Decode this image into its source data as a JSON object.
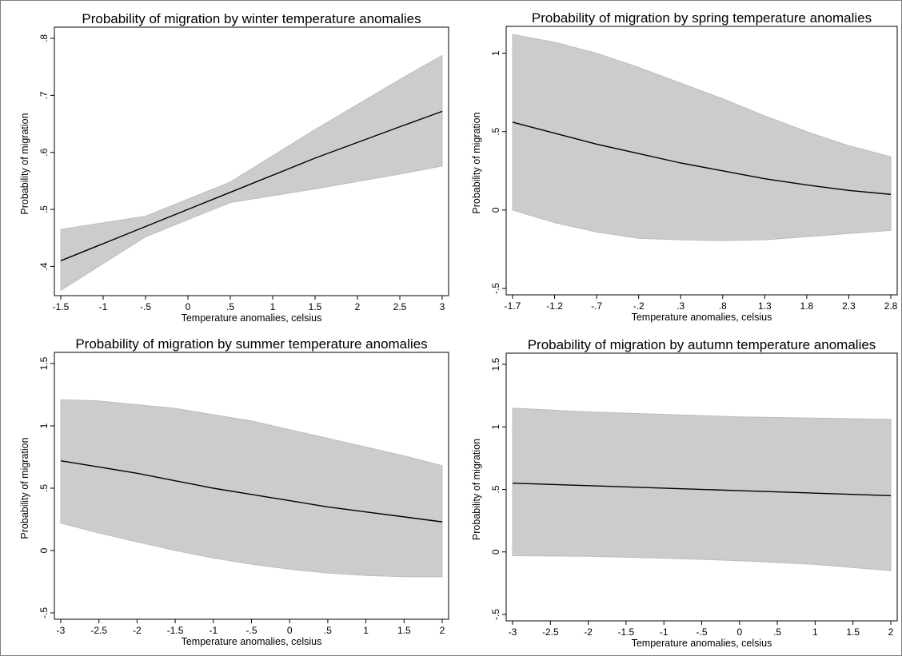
{
  "chart_data": [
    {
      "type": "line",
      "title": "Probability of migration by winter temperature anomalies",
      "xlabel": "Temperature anomalies, celsius",
      "ylabel": "Probability of migration",
      "xlim": [
        -1.5,
        3
      ],
      "ylim": [
        0.36,
        0.8
      ],
      "x_ticks": [
        -1.5,
        -1,
        -0.5,
        0,
        0.5,
        1,
        1.5,
        2,
        2.5,
        3
      ],
      "x_tick_labels": [
        "-1.5",
        "-1",
        "-.5",
        "0",
        ".5",
        "1",
        "1.5",
        "2",
        "2.5",
        "3"
      ],
      "y_ticks": [
        0.4,
        0.5,
        0.6,
        0.7,
        0.8
      ],
      "y_tick_labels": [
        ".4",
        ".5",
        ".6",
        ".7",
        ".8"
      ],
      "grid": false,
      "colors": {
        "band": "#cccccc",
        "line": "#000000"
      },
      "series": [
        {
          "x": [
            -1.5,
            -0.5,
            0.5,
            1.5,
            2.5,
            3
          ],
          "values": [
            0.41,
            0.47,
            0.53,
            0.59,
            0.645,
            0.672
          ]
        },
        {
          "type": "band",
          "x": [
            -1.5,
            -0.5,
            0.5,
            1.5,
            2.5,
            3
          ],
          "lower": [
            0.358,
            0.452,
            0.512,
            0.536,
            0.562,
            0.576
          ],
          "upper": [
            0.465,
            0.488,
            0.548,
            0.64,
            0.728,
            0.77
          ]
        }
      ]
    },
    {
      "type": "line",
      "title": "Probability of migration by spring temperature anomalies",
      "xlabel": "Temperature anomalies, celsius",
      "ylabel": "Probability of migration",
      "xlim": [
        -1.7,
        2.8
      ],
      "ylim": [
        -0.5,
        1.1
      ],
      "x_ticks": [
        -1.7,
        -1.2,
        -0.7,
        -0.2,
        0.3,
        0.8,
        1.3,
        1.8,
        2.3,
        2.8
      ],
      "x_tick_labels": [
        "-1.7",
        "-1.2",
        "-.7",
        "-.2",
        ".3",
        ".8",
        "1.3",
        "1.8",
        "2.3",
        "2.8"
      ],
      "y_ticks": [
        -0.5,
        0,
        0.5,
        1
      ],
      "y_tick_labels": [
        "-.5",
        "0",
        ".5",
        "1"
      ],
      "grid": false,
      "colors": {
        "band": "#cccccc",
        "line": "#000000"
      },
      "series": [
        {
          "x": [
            -1.7,
            -1.2,
            -0.7,
            -0.2,
            0.3,
            0.8,
            1.3,
            1.8,
            2.3,
            2.8
          ],
          "values": [
            0.56,
            0.49,
            0.42,
            0.36,
            0.3,
            0.25,
            0.2,
            0.16,
            0.125,
            0.1
          ]
        },
        {
          "type": "band",
          "x": [
            -1.7,
            -1.2,
            -0.7,
            -0.2,
            0.3,
            0.8,
            1.3,
            1.8,
            2.3,
            2.8
          ],
          "lower": [
            0.0,
            -0.08,
            -0.14,
            -0.18,
            -0.19,
            -0.195,
            -0.19,
            -0.17,
            -0.15,
            -0.13
          ],
          "upper": [
            1.12,
            1.07,
            1.0,
            0.91,
            0.81,
            0.71,
            0.6,
            0.5,
            0.41,
            0.34
          ]
        }
      ]
    },
    {
      "type": "line",
      "title": "Probability of migration by summer temperature anomalies",
      "xlabel": "Temperature anomalies, celsius",
      "ylabel": "Probability of migration",
      "xlim": [
        -3,
        2
      ],
      "ylim": [
        -0.5,
        1.5
      ],
      "x_ticks": [
        -3,
        -2.5,
        -2,
        -1.5,
        -1,
        -0.5,
        0,
        0.5,
        1,
        1.5,
        2
      ],
      "x_tick_labels": [
        "-3",
        "-2.5",
        "-2",
        "-1.5",
        "-1",
        "-.5",
        "0",
        ".5",
        "1",
        "1.5",
        "2"
      ],
      "y_ticks": [
        -0.5,
        0,
        0.5,
        1,
        1.5
      ],
      "y_tick_labels": [
        "-.5",
        "0",
        ".5",
        "1",
        "1.5"
      ],
      "grid": false,
      "colors": {
        "band": "#cccccc",
        "line": "#000000"
      },
      "series": [
        {
          "x": [
            -3,
            -2.5,
            -2,
            -1.5,
            -1,
            -0.5,
            0,
            0.5,
            1,
            1.5,
            2
          ],
          "values": [
            0.72,
            0.67,
            0.62,
            0.56,
            0.5,
            0.45,
            0.4,
            0.35,
            0.31,
            0.27,
            0.23
          ]
        },
        {
          "type": "band",
          "x": [
            -3,
            -2.5,
            -2,
            -1.5,
            -1,
            -0.5,
            0,
            0.5,
            1,
            1.5,
            2
          ],
          "lower": [
            0.22,
            0.14,
            0.07,
            0.0,
            -0.06,
            -0.11,
            -0.15,
            -0.18,
            -0.2,
            -0.21,
            -0.21
          ],
          "upper": [
            1.21,
            1.2,
            1.17,
            1.14,
            1.09,
            1.04,
            0.97,
            0.9,
            0.83,
            0.76,
            0.68
          ]
        }
      ]
    },
    {
      "type": "line",
      "title": "Probability of migration by autumn temperature anomalies",
      "xlabel": "Temperature anomalies, celsius",
      "ylabel": "Probability of migration",
      "xlim": [
        -3,
        2
      ],
      "ylim": [
        -0.5,
        1.5
      ],
      "x_ticks": [
        -3,
        -2.5,
        -2,
        -1.5,
        -1,
        -0.5,
        0,
        0.5,
        1,
        1.5,
        2
      ],
      "x_tick_labels": [
        "-3",
        "-2.5",
        "-2",
        "-1.5",
        "-1",
        "-.5",
        "0",
        ".5",
        "1",
        "1.5",
        "2"
      ],
      "y_ticks": [
        -0.5,
        0,
        0.5,
        1,
        1.5
      ],
      "y_tick_labels": [
        "-.5",
        "0",
        ".5",
        "1",
        "1.5"
      ],
      "grid": false,
      "colors": {
        "band": "#cccccc",
        "line": "#000000"
      },
      "series": [
        {
          "x": [
            -3,
            -2,
            -1,
            0,
            1,
            2
          ],
          "values": [
            0.55,
            0.53,
            0.51,
            0.49,
            0.47,
            0.45
          ]
        },
        {
          "type": "band",
          "x": [
            -3,
            -2,
            -1,
            0,
            1,
            2
          ],
          "lower": [
            -0.03,
            -0.035,
            -0.05,
            -0.07,
            -0.1,
            -0.15
          ],
          "upper": [
            1.15,
            1.12,
            1.1,
            1.08,
            1.07,
            1.06
          ]
        }
      ]
    }
  ]
}
